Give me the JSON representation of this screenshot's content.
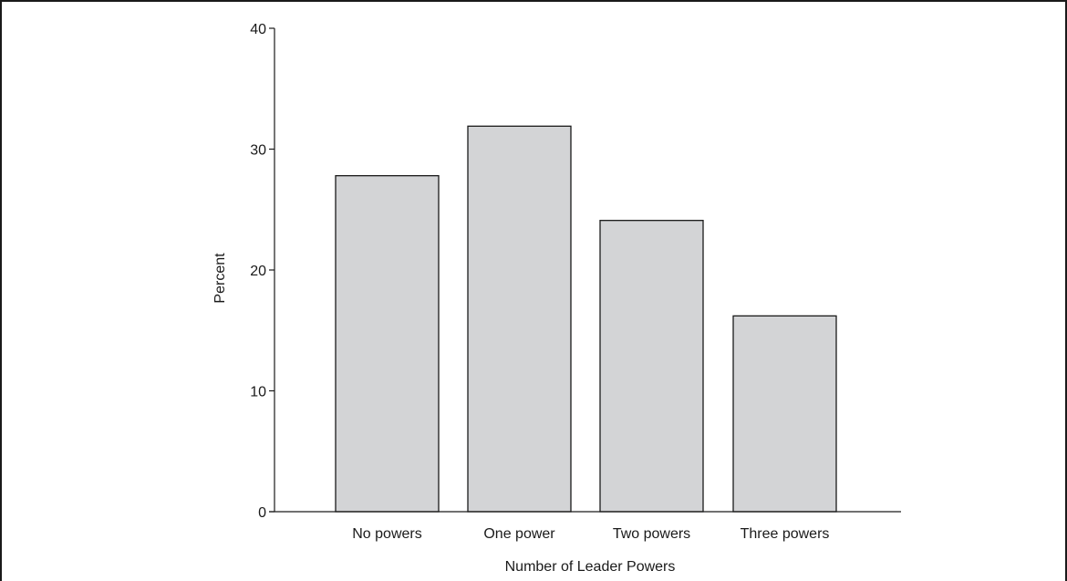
{
  "chart_data": {
    "type": "bar",
    "title": "",
    "xlabel": "Number of Leader Powers",
    "ylabel": "Percent",
    "categories": [
      "No powers",
      "One power",
      "Two powers",
      "Three powers"
    ],
    "values": [
      27.8,
      31.9,
      24.1,
      16.2
    ],
    "ylim": [
      0,
      40
    ],
    "yticks": [
      0,
      10,
      20,
      30,
      40
    ],
    "grid": false,
    "legend": "none",
    "colors": {
      "bar_fill": "#d3d4d6",
      "bar_stroke": "#1a1a1a",
      "axis": "#1a1a1a"
    }
  }
}
